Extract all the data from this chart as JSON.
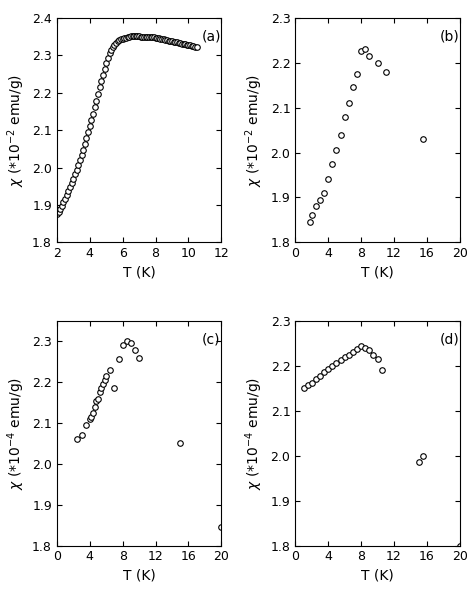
{
  "panel_a": {
    "label": "(a)",
    "T": [
      2.0,
      2.1,
      2.2,
      2.3,
      2.4,
      2.5,
      2.6,
      2.7,
      2.8,
      2.9,
      3.0,
      3.1,
      3.2,
      3.3,
      3.4,
      3.5,
      3.6,
      3.7,
      3.8,
      3.9,
      4.0,
      4.1,
      4.2,
      4.3,
      4.4,
      4.5,
      4.6,
      4.7,
      4.8,
      4.9,
      5.0,
      5.1,
      5.2,
      5.3,
      5.4,
      5.5,
      5.6,
      5.7,
      5.8,
      5.9,
      6.0,
      6.1,
      6.2,
      6.3,
      6.4,
      6.5,
      6.6,
      6.7,
      6.8,
      6.9,
      7.0,
      7.1,
      7.2,
      7.3,
      7.4,
      7.5,
      7.6,
      7.7,
      7.8,
      7.9,
      8.0,
      8.1,
      8.2,
      8.3,
      8.4,
      8.5,
      8.6,
      8.7,
      8.8,
      8.9,
      9.0,
      9.1,
      9.2,
      9.3,
      9.4,
      9.5,
      9.6,
      9.7,
      9.8,
      9.9,
      10.0,
      10.1,
      10.2,
      10.3,
      10.4,
      10.5
    ],
    "chi": [
      1.875,
      1.882,
      1.89,
      1.898,
      1.907,
      1.916,
      1.926,
      1.936,
      1.947,
      1.958,
      1.97,
      1.982,
      1.994,
      2.007,
      2.02,
      2.034,
      2.048,
      2.063,
      2.078,
      2.094,
      2.11,
      2.127,
      2.144,
      2.161,
      2.179,
      2.197,
      2.214,
      2.231,
      2.248,
      2.264,
      2.279,
      2.293,
      2.305,
      2.314,
      2.322,
      2.328,
      2.333,
      2.337,
      2.34,
      2.342,
      2.344,
      2.346,
      2.347,
      2.348,
      2.35,
      2.351,
      2.352,
      2.352,
      2.352,
      2.352,
      2.351,
      2.35,
      2.349,
      2.349,
      2.349,
      2.349,
      2.349,
      2.349,
      2.349,
      2.348,
      2.347,
      2.346,
      2.345,
      2.344,
      2.343,
      2.342,
      2.341,
      2.34,
      2.339,
      2.338,
      2.337,
      2.336,
      2.335,
      2.334,
      2.333,
      2.332,
      2.331,
      2.33,
      2.329,
      2.328,
      2.327,
      2.326,
      2.325,
      2.324,
      2.323,
      2.322
    ],
    "xlim": [
      2,
      12
    ],
    "ylim": [
      1.8,
      2.4
    ],
    "xticks": [
      2,
      4,
      6,
      8,
      10,
      12
    ],
    "yticks": [
      1.8,
      1.9,
      2.0,
      2.1,
      2.2,
      2.3,
      2.4
    ],
    "xlabel": "T (K)",
    "ylabel": "χ (*10⁻² emu/g)"
  },
  "panel_b": {
    "label": "(b)",
    "T": [
      1.8,
      2.0,
      2.5,
      3.0,
      3.5,
      4.0,
      4.5,
      5.0,
      5.5,
      6.0,
      6.5,
      7.0,
      7.5,
      8.0,
      8.5,
      9.0,
      10.0,
      11.0,
      15.5
    ],
    "chi": [
      1.845,
      1.862,
      1.88,
      1.895,
      1.91,
      1.94,
      1.975,
      2.005,
      2.04,
      2.08,
      2.11,
      2.145,
      2.175,
      2.225,
      2.23,
      2.215,
      2.2,
      2.18,
      2.03
    ],
    "xlim": [
      0,
      20
    ],
    "ylim": [
      1.8,
      2.3
    ],
    "xticks": [
      0,
      4,
      8,
      12,
      16,
      20
    ],
    "yticks": [
      1.8,
      1.9,
      2.0,
      2.1,
      2.2,
      2.3
    ],
    "xlabel": "T (K)",
    "ylabel": "χ (*10⁻² emu/g)"
  },
  "panel_c": {
    "label": "(c)",
    "T": [
      2.5,
      3.0,
      3.5,
      4.0,
      4.2,
      4.4,
      4.6,
      4.8,
      5.0,
      5.2,
      5.4,
      5.6,
      5.8,
      6.0,
      6.5,
      7.0,
      7.5,
      8.0,
      8.5,
      9.0,
      9.5,
      10.0,
      15.0,
      20.0
    ],
    "chi": [
      2.06,
      2.07,
      2.095,
      2.11,
      2.115,
      2.125,
      2.14,
      2.155,
      2.16,
      2.175,
      2.185,
      2.195,
      2.205,
      2.215,
      2.23,
      2.185,
      2.258,
      2.29,
      2.3,
      2.295,
      2.28,
      2.26,
      2.05,
      1.845
    ],
    "xlim": [
      0,
      20
    ],
    "ylim": [
      1.8,
      2.35
    ],
    "xticks": [
      0,
      4,
      8,
      12,
      16,
      20
    ],
    "yticks": [
      1.8,
      1.9,
      2.0,
      2.1,
      2.2,
      2.3
    ],
    "xlabel": "T (K)",
    "ylabel": "χ (*10⁻´ emu/g)"
  },
  "panel_d": {
    "label": "(d)",
    "T": [
      1.0,
      1.5,
      2.0,
      2.5,
      3.0,
      3.5,
      4.0,
      4.5,
      5.0,
      5.5,
      6.0,
      6.5,
      7.0,
      7.5,
      8.0,
      8.5,
      9.0,
      9.5,
      10.0,
      10.5,
      15.0,
      15.5,
      20.0
    ],
    "chi": [
      2.15,
      2.157,
      2.163,
      2.17,
      2.178,
      2.186,
      2.193,
      2.2,
      2.207,
      2.213,
      2.22,
      2.225,
      2.23,
      2.238,
      2.245,
      2.24,
      2.235,
      2.225,
      2.215,
      2.19,
      1.985,
      2.0,
      1.8
    ],
    "xlim": [
      0,
      20
    ],
    "ylim": [
      1.8,
      2.3
    ],
    "xticks": [
      0,
      4,
      8,
      12,
      16,
      20
    ],
    "yticks": [
      1.8,
      1.9,
      2.0,
      2.1,
      2.2,
      2.3
    ],
    "xlabel": "T (K)",
    "ylabel": "χ (*10⁻´ emu/g)"
  },
  "marker": "o",
  "marker_size": 4,
  "marker_facecolor": "white",
  "marker_edgecolor": "black",
  "marker_edgewidth": 0.8,
  "background_color": "#ffffff",
  "label_fontsize": 10,
  "tick_fontsize": 9,
  "axis_label_fontsize": 10
}
